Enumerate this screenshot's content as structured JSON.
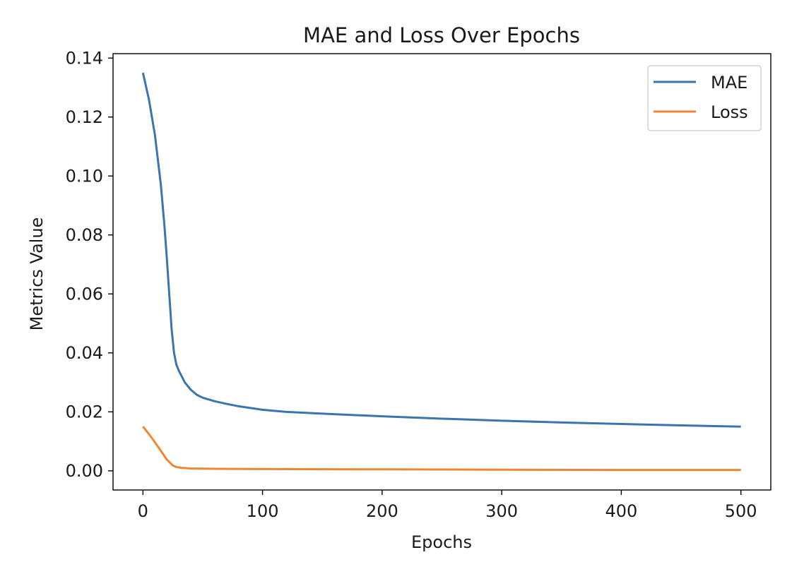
{
  "chart_data": {
    "type": "line",
    "title": "MAE and Loss Over Epochs",
    "xlabel": "Epochs",
    "ylabel": "Metrics Value",
    "xlim": [
      -25,
      525
    ],
    "ylim": [
      -0.0065,
      0.1415
    ],
    "xticks": [
      "0",
      "100",
      "200",
      "300",
      "400",
      "500"
    ],
    "yticks": [
      "0.00",
      "0.02",
      "0.04",
      "0.06",
      "0.08",
      "0.10",
      "0.12",
      "0.14"
    ],
    "grid": false,
    "legend_position": "top-right",
    "series": [
      {
        "name": "MAE",
        "color": "#3b75af",
        "x": [
          0,
          5,
          10,
          15,
          18,
          20,
          22,
          24,
          26,
          28,
          30,
          35,
          40,
          45,
          50,
          60,
          70,
          80,
          100,
          120,
          150,
          200,
          250,
          300,
          350,
          400,
          450,
          500
        ],
        "y": [
          0.135,
          0.126,
          0.114,
          0.097,
          0.083,
          0.072,
          0.06,
          0.048,
          0.04,
          0.036,
          0.034,
          0.03,
          0.0275,
          0.0258,
          0.0248,
          0.0236,
          0.0227,
          0.0219,
          0.0207,
          0.02,
          0.0194,
          0.0185,
          0.0177,
          0.017,
          0.0164,
          0.0159,
          0.0154,
          0.015
        ]
      },
      {
        "name": "Loss",
        "color": "#ef8636",
        "x": [
          0,
          5,
          10,
          15,
          20,
          25,
          28,
          32,
          40,
          60,
          100,
          200,
          300,
          400,
          500
        ],
        "y": [
          0.015,
          0.0125,
          0.0097,
          0.0068,
          0.0038,
          0.0018,
          0.0013,
          0.001,
          0.0008,
          0.0007,
          0.0006,
          0.0005,
          0.0004,
          0.0003,
          0.0003
        ]
      }
    ]
  }
}
